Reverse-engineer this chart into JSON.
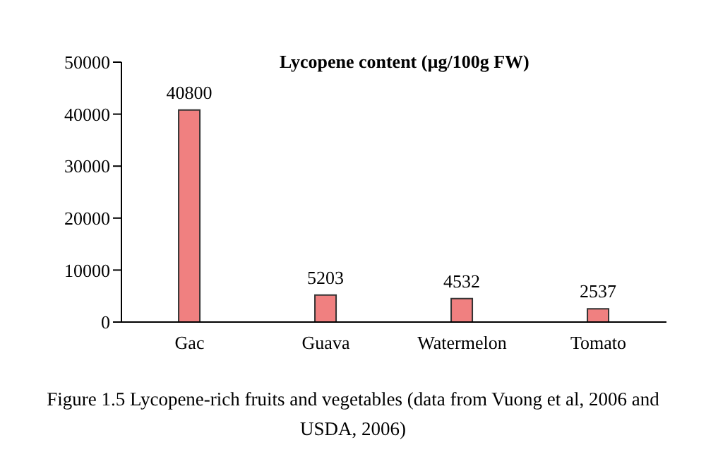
{
  "chart_data": {
    "type": "bar",
    "title": "Lycopene content (µg/100g FW)",
    "categories": [
      "Gac",
      "Guava",
      "Watermelon",
      "Tomato"
    ],
    "values": [
      40800,
      5203,
      4532,
      2537
    ],
    "color": "#f08080",
    "ylim": [
      0,
      50000
    ],
    "yticks": [
      0,
      10000,
      20000,
      30000,
      40000,
      50000
    ],
    "grid": false,
    "data_labels": true,
    "annotations": [
      "Figure 1.5 Lycopene-rich fruits and vegetables (data from Vuong et al, 2006 and USDA, 2006)"
    ]
  }
}
